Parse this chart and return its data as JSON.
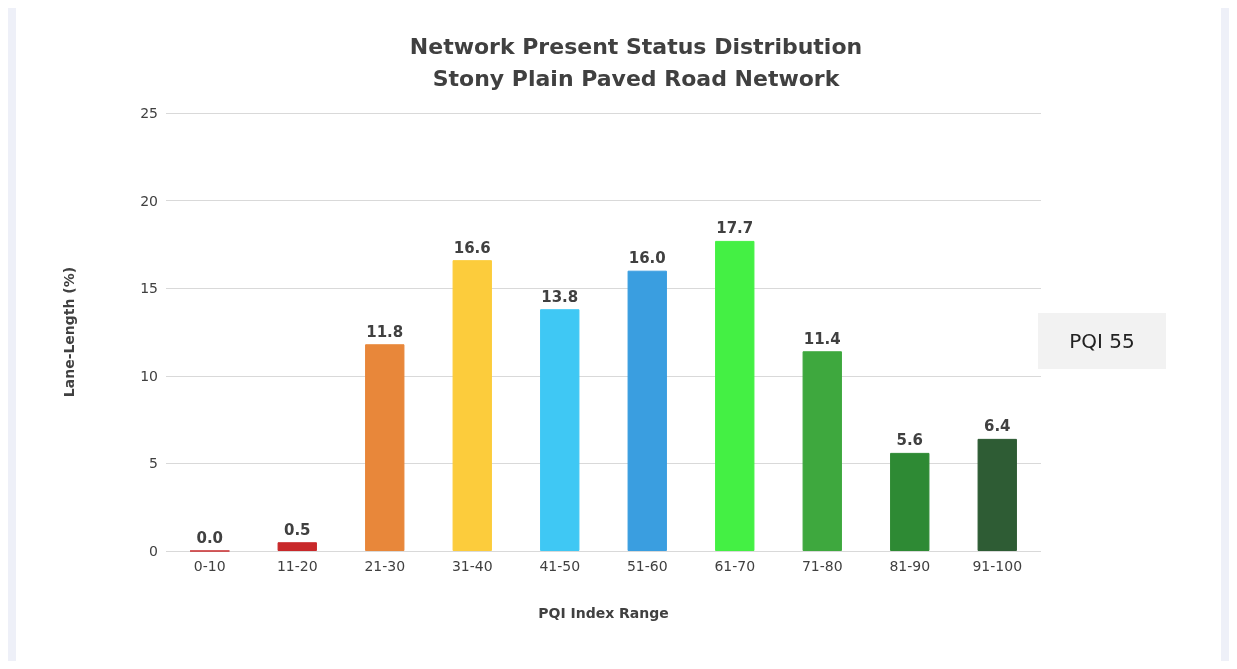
{
  "chart_data": {
    "type": "bar",
    "title": "Network Present Status Distribution",
    "subtitle": "Stony Plain Paved Road Network",
    "xlabel": "PQI Index Range",
    "ylabel": "Lane-Length (%)",
    "categories": [
      "0-10",
      "11-20",
      "21-30",
      "31-40",
      "41-50",
      "51-60",
      "61-70",
      "71-80",
      "81-90",
      "91-100"
    ],
    "values": [
      0.0,
      0.5,
      11.8,
      16.6,
      13.8,
      16.0,
      17.7,
      11.4,
      5.6,
      6.4
    ],
    "value_labels": [
      "0.0",
      "0.5",
      "11.8",
      "16.6",
      "13.8",
      "16.0",
      "17.7",
      "11.4",
      "5.6",
      "6.4"
    ],
    "colors": [
      "#c8282a",
      "#c8282a",
      "#e8873a",
      "#fccc3c",
      "#3fc8f4",
      "#3a9ee0",
      "#44f044",
      "#3ea83e",
      "#2e8a34",
      "#2e5c34"
    ],
    "ylim": [
      0,
      25
    ],
    "yticks": [
      0,
      5,
      10,
      15,
      20,
      25
    ],
    "grid": "y",
    "annotations": [
      "PQI 55"
    ]
  }
}
